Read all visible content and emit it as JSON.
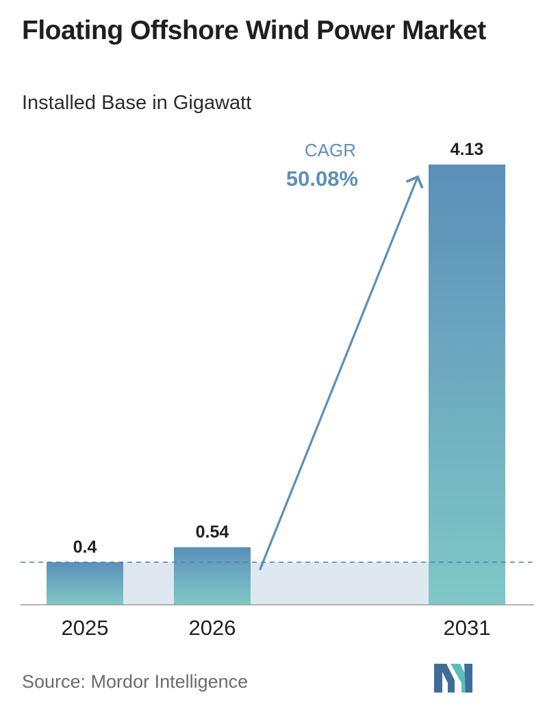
{
  "title": "Floating Offshore Wind Power Market",
  "subtitle": "Installed Base in Gigawatt",
  "source": "Source:  Mordor Intelligence",
  "cagr": {
    "label": "CAGR",
    "value": "50.08%"
  },
  "colors": {
    "bar_top": "#5b8fb9",
    "bar_bottom": "#80c8c6",
    "band": "#dfe7f1",
    "arrow": "#5d8fb8",
    "cagr_label": "#5d8fb8",
    "cagr_value": "#5d8fb8",
    "logo_dark": "#3e6e98",
    "logo_teal": "#5bbcc0"
  },
  "chart_data": {
    "type": "bar",
    "categories": [
      "2025",
      "2026",
      "2031"
    ],
    "values": [
      0.4,
      0.54,
      4.13
    ],
    "value_labels": [
      "0.4",
      "0.54",
      "4.13"
    ],
    "title": "Floating Offshore Wind Power Market",
    "subtitle": "Installed Base in Gigawatt",
    "xlabel": "",
    "ylabel": "",
    "ylim": [
      0,
      4.13
    ],
    "grid": false,
    "legend": "none",
    "reference_line_value": 0.4
  }
}
